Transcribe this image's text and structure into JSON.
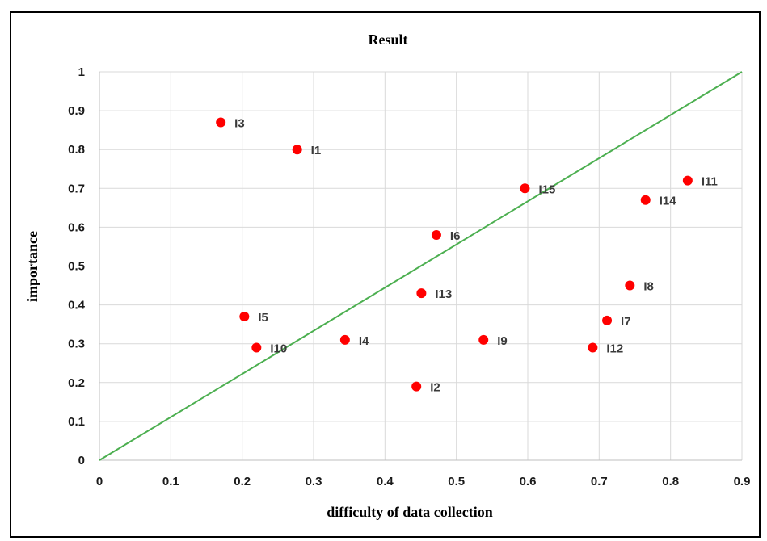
{
  "chart_data": {
    "type": "scatter",
    "title": "Result",
    "xlabel": "difficulty of data collection",
    "ylabel": "importance",
    "xlim": [
      0,
      0.9
    ],
    "ylim": [
      0,
      1
    ],
    "xticks": [
      "0",
      "0.1",
      "0.2",
      "0.3",
      "0.4",
      "0.5",
      "0.6",
      "0.7",
      "0.8",
      "0.9"
    ],
    "yticks": [
      "0",
      "0.1",
      "0.2",
      "0.3",
      "0.4",
      "0.5",
      "0.6",
      "0.7",
      "0.8",
      "0.9",
      "1"
    ],
    "grid": true,
    "legend": "none",
    "point_color": "#ff0000",
    "line_color": "#4caf50",
    "reference_line": {
      "x": [
        0,
        0.9
      ],
      "y": [
        0,
        1
      ]
    },
    "points": [
      {
        "label": "I1",
        "x": 0.277,
        "y": 0.8
      },
      {
        "label": "I2",
        "x": 0.444,
        "y": 0.19
      },
      {
        "label": "I3",
        "x": 0.17,
        "y": 0.87
      },
      {
        "label": "I4",
        "x": 0.344,
        "y": 0.31
      },
      {
        "label": "I5",
        "x": 0.203,
        "y": 0.37
      },
      {
        "label": "I6",
        "x": 0.472,
        "y": 0.58
      },
      {
        "label": "I7",
        "x": 0.711,
        "y": 0.36
      },
      {
        "label": "I8",
        "x": 0.743,
        "y": 0.45
      },
      {
        "label": "I9",
        "x": 0.538,
        "y": 0.31
      },
      {
        "label": "I10",
        "x": 0.22,
        "y": 0.29
      },
      {
        "label": "I11",
        "x": 0.824,
        "y": 0.72
      },
      {
        "label": "I12",
        "x": 0.691,
        "y": 0.29
      },
      {
        "label": "I13",
        "x": 0.451,
        "y": 0.43
      },
      {
        "label": "I14",
        "x": 0.765,
        "y": 0.67
      },
      {
        "label": "I15",
        "x": 0.596,
        "y": 0.7
      }
    ]
  }
}
